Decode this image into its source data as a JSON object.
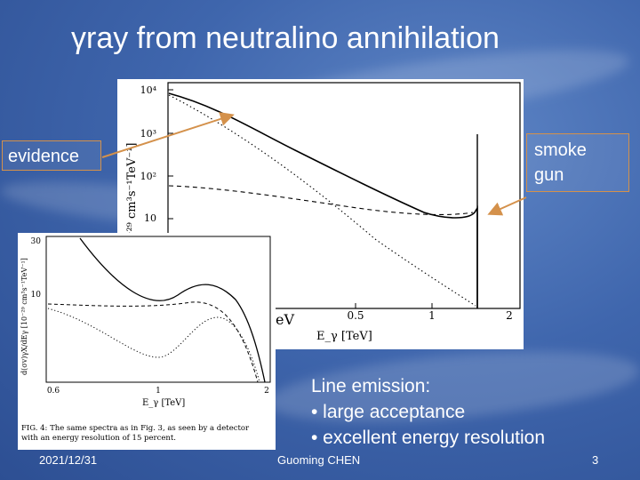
{
  "slide": {
    "title": "γray from neutralino annihilation",
    "callout_left": "evidence",
    "callout_right_line1": "smoke",
    "callout_right_line2": "gun",
    "bullets": {
      "heading": "Line emission:",
      "item1": "• large acceptance",
      "item2": "• excellent  energy resolution"
    },
    "footer": {
      "date": "2021/12/31",
      "author": "Guoming CHEN",
      "page": "3"
    },
    "accent_color": "#d4914b",
    "background_color": "#3f66ad"
  },
  "chart_data": [
    {
      "type": "line",
      "scale": "log-log",
      "ylabel": "[10⁻²⁹ cm³s⁻¹TeV⁻¹]",
      "xlabel": "E_γ [TeV]",
      "y_ticks": [
        "10⁴",
        "10³",
        "10²",
        "10"
      ],
      "x_ticks": [
        "0.5",
        "1",
        "2"
      ],
      "x_tick_fragment": "eV",
      "series": [
        {
          "style": "solid",
          "x": [
            0.09,
            0.15,
            0.3,
            0.6,
            1.0,
            1.3,
            1.5,
            1.6
          ],
          "y": [
            4000,
            2000,
            500,
            60,
            13,
            10,
            10,
            12
          ]
        },
        {
          "style": "dashed",
          "x": [
            0.09,
            0.2,
            0.5,
            1.0,
            1.6
          ],
          "y": [
            60,
            40,
            20,
            10,
            9
          ]
        },
        {
          "style": "dotted",
          "x": [
            0.09,
            0.3,
            0.6,
            1.0,
            1.6
          ],
          "y": [
            3900,
            400,
            40,
            4,
            1
          ]
        }
      ],
      "line_position_tev": 1.6
    },
    {
      "type": "line",
      "ylabel": "d(σv)γX/dEγ [10⁻²⁹ cm³s⁻¹TeV⁻¹]",
      "xlabel": "E_γ [TeV]",
      "y_ticks": [
        "30",
        "10"
      ],
      "x_ticks": [
        "0.6",
        "1",
        "2"
      ],
      "caption_line1": "FIG. 4: The same spectra as in Fig. 3, as seen by a detector",
      "caption_line2": "with an energy resolution of 15 percent.",
      "series": [
        {
          "style": "solid",
          "x": [
            0.6,
            0.9,
            1.2,
            1.6,
            2.0
          ],
          "y": [
            30,
            11,
            9.5,
            10,
            2
          ]
        },
        {
          "style": "dashed",
          "x": [
            0.6,
            0.9,
            1.2,
            1.6,
            2.0
          ],
          "y": [
            9,
            8,
            7.8,
            7,
            2
          ]
        },
        {
          "style": "dotted",
          "x": [
            0.6,
            0.9,
            1.0,
            1.3,
            1.6,
            2.0
          ],
          "y": [
            6,
            5,
            4.4,
            7,
            6,
            2
          ]
        }
      ]
    }
  ]
}
